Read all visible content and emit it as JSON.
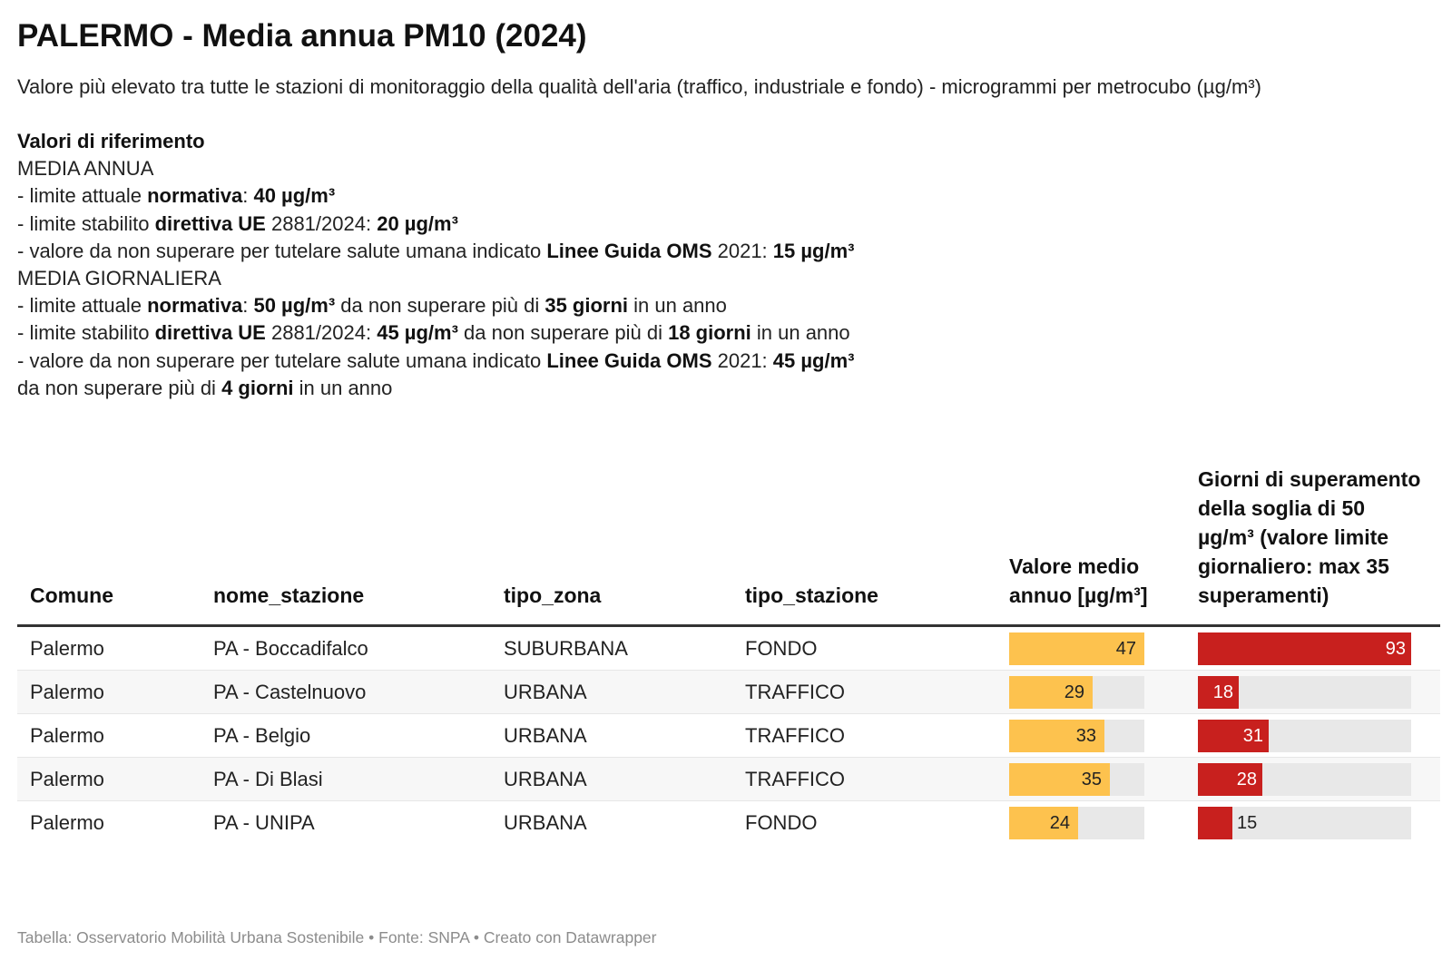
{
  "title": "PALERMO - Media annua PM10 (2024)",
  "subtitle": "Valore più elevato tra tutte le stazioni di monitoraggio della qualità dell'aria (traffico, industriale e fondo) - microgrammi per metrocubo (µg/m³)",
  "reference": {
    "heading": "Valori di riferimento",
    "annual_heading": "MEDIA ANNUA",
    "annual_1": [
      "- limite attuale ",
      "normativa",
      ": ",
      "40 µg/m³"
    ],
    "annual_2": [
      "- limite stabilito ",
      "direttiva UE",
      " 2881/2024: ",
      "20 µg/m³"
    ],
    "annual_3": [
      "- valore da non superare per tutelare salute umana indicato ",
      "Linee Guida OMS",
      " 2021: ",
      "15 µg/m³"
    ],
    "daily_heading": "MEDIA GIORNALIERA",
    "daily_1": [
      "- limite attuale ",
      "normativa",
      ": ",
      "50 µg/m³",
      " da non superare più di ",
      "35 giorni",
      " in un anno"
    ],
    "daily_2": [
      "- limite stabilito ",
      "direttiva UE",
      " 2881/2024: ",
      "45 µg/m³",
      " da non superare più di ",
      "18 giorni",
      " in un anno"
    ],
    "daily_3": [
      "- valore da non superare per tutelare salute umana indicato ",
      "Linee Guida OMS",
      " 2021: ",
      "45 µg/m³"
    ],
    "daily_4": [
      "da non superare più di ",
      "4 giorni",
      " in un anno"
    ]
  },
  "columns": {
    "comune": "Comune",
    "nome_stazione": "nome_stazione",
    "tipo_zona": "tipo_zona",
    "tipo_stazione": "tipo_stazione",
    "valore": "Valore medio annuo [µg/m³]",
    "giorni": "Giorni di superamento della soglia di 50 µg/m³ (valore limite giornaliero: max 35 superamenti)"
  },
  "colors": {
    "pm10_bar": "#fdc24e",
    "days_bar": "#c8201e",
    "bar_bg": "#e8e8e8"
  },
  "chart_data": {
    "type": "table",
    "columns": [
      "Comune",
      "nome_stazione",
      "tipo_zona",
      "tipo_stazione",
      "Valore medio annuo [µg/m³]",
      "Giorni di superamento della soglia di 50 µg/m³ (valore limite giornaliero: max 35 superamenti)"
    ],
    "rows": [
      {
        "comune": "Palermo",
        "stazione": "PA - Boccadifalco",
        "zona": "SUBURBANA",
        "tipo": "FONDO",
        "valore": 47,
        "giorni": 93
      },
      {
        "comune": "Palermo",
        "stazione": "PA - Castelnuovo",
        "zona": "URBANA",
        "tipo": "TRAFFICO",
        "valore": 29,
        "giorni": 18
      },
      {
        "comune": "Palermo",
        "stazione": "PA - Belgio",
        "zona": "URBANA",
        "tipo": "TRAFFICO",
        "valore": 33,
        "giorni": 31
      },
      {
        "comune": "Palermo",
        "stazione": "PA - Di Blasi",
        "zona": "URBANA",
        "tipo": "TRAFFICO",
        "valore": 35,
        "giorni": 28
      },
      {
        "comune": "Palermo",
        "stazione": "PA - UNIPA",
        "zona": "URBANA",
        "tipo": "FONDO",
        "valore": 24,
        "giorni": 15
      }
    ],
    "valore_max": 47,
    "giorni_max": 93
  },
  "footer": "Tabella: Osservatorio Mobilità Urbana Sostenibile • Fonte: SNPA • Creato con Datawrapper"
}
